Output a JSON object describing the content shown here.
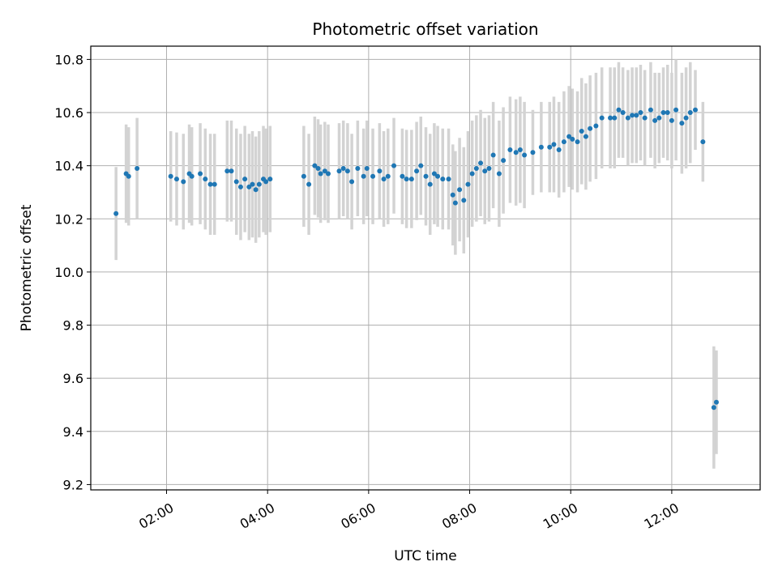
{
  "chart_data": {
    "type": "scatter",
    "title": "Photometric offset variation",
    "xlabel": "UTC time",
    "ylabel": "Photometric offset",
    "xlim": [
      "00:30",
      "13:45"
    ],
    "ylim": [
      9.18,
      10.85
    ],
    "grid": true,
    "x_ticks": [
      "02:00",
      "04:00",
      "06:00",
      "08:00",
      "10:00",
      "12:00"
    ],
    "y_ticks": [
      9.2,
      9.4,
      9.6,
      9.8,
      10.0,
      10.2,
      10.4,
      10.6,
      10.8
    ],
    "y_tick_labels": [
      "9.2",
      "9.4",
      "9.6",
      "9.8",
      "10.0",
      "10.2",
      "10.4",
      "10.6",
      "10.8"
    ],
    "colors": {
      "points": "#1f77b4",
      "error_bars": "#d3d3d3",
      "grid": "#b0b0b0"
    },
    "series": [
      {
        "x": [
          "01:00",
          "01:12",
          "01:15",
          "01:25",
          "02:05",
          "02:12",
          "02:20",
          "02:27",
          "02:30",
          "02:40",
          "02:46",
          "02:52",
          "02:57",
          "03:12",
          "03:17",
          "03:23",
          "03:28",
          "03:33",
          "03:38",
          "03:42",
          "03:46",
          "03:50",
          "03:55",
          "03:58",
          "04:03",
          "04:43",
          "04:49",
          "04:56",
          "05:00",
          "05:03",
          "05:08",
          "05:12",
          "05:25",
          "05:30",
          "05:35",
          "05:40",
          "05:47",
          "05:54",
          "05:58",
          "06:05",
          "06:13",
          "06:18",
          "06:23",
          "06:30",
          "06:40",
          "06:45",
          "06:51",
          "06:57",
          "07:02",
          "07:08",
          "07:13",
          "07:18",
          "07:22",
          "07:28",
          "07:35",
          "07:40",
          "07:43",
          "07:48",
          "07:53",
          "07:58",
          "08:03",
          "08:08",
          "08:13",
          "08:18",
          "08:23",
          "08:28",
          "08:35",
          "08:40",
          "08:48",
          "08:55",
          "09:00",
          "09:05",
          "09:15",
          "09:25",
          "09:35",
          "09:40",
          "09:46",
          "09:52",
          "09:58",
          "10:02",
          "10:08",
          "10:13",
          "10:18",
          "10:23",
          "10:30",
          "10:37",
          "10:47",
          "10:52",
          "10:57",
          "11:02",
          "11:08",
          "11:13",
          "11:18",
          "11:23",
          "11:28",
          "11:35",
          "11:40",
          "11:45",
          "11:50",
          "11:55",
          "12:00",
          "12:05",
          "12:12",
          "12:17",
          "12:22",
          "12:28",
          "12:37",
          "12:50",
          "12:53"
        ],
        "y": [
          10.22,
          10.37,
          10.36,
          10.39,
          10.36,
          10.35,
          10.34,
          10.37,
          10.36,
          10.37,
          10.35,
          10.33,
          10.33,
          10.38,
          10.38,
          10.34,
          10.32,
          10.35,
          10.32,
          10.33,
          10.31,
          10.33,
          10.35,
          10.34,
          10.35,
          10.36,
          10.33,
          10.4,
          10.39,
          10.37,
          10.38,
          10.37,
          10.38,
          10.39,
          10.38,
          10.34,
          10.39,
          10.36,
          10.39,
          10.36,
          10.38,
          10.35,
          10.36,
          10.4,
          10.36,
          10.35,
          10.35,
          10.38,
          10.4,
          10.36,
          10.33,
          10.37,
          10.36,
          10.35,
          10.35,
          10.29,
          10.26,
          10.31,
          10.27,
          10.33,
          10.37,
          10.39,
          10.41,
          10.38,
          10.39,
          10.44,
          10.37,
          10.42,
          10.46,
          10.45,
          10.46,
          10.44,
          10.45,
          10.47,
          10.47,
          10.48,
          10.46,
          10.49,
          10.51,
          10.5,
          10.49,
          10.53,
          10.51,
          10.54,
          10.55,
          10.58,
          10.58,
          10.58,
          10.61,
          10.6,
          10.58,
          10.59,
          10.59,
          10.6,
          10.58,
          10.61,
          10.57,
          10.58,
          10.6,
          10.6,
          10.57,
          10.61,
          10.56,
          10.58,
          10.6,
          10.61,
          10.49,
          9.49,
          9.51
        ],
        "err": [
          0.175,
          0.185,
          0.185,
          0.19,
          0.17,
          0.175,
          0.18,
          0.185,
          0.185,
          0.19,
          0.19,
          0.19,
          0.19,
          0.19,
          0.19,
          0.2,
          0.2,
          0.2,
          0.2,
          0.2,
          0.2,
          0.2,
          0.2,
          0.2,
          0.2,
          0.19,
          0.19,
          0.185,
          0.185,
          0.185,
          0.185,
          0.185,
          0.18,
          0.18,
          0.18,
          0.18,
          0.18,
          0.18,
          0.18,
          0.18,
          0.18,
          0.18,
          0.18,
          0.18,
          0.18,
          0.185,
          0.185,
          0.185,
          0.185,
          0.185,
          0.19,
          0.19,
          0.19,
          0.19,
          0.19,
          0.19,
          0.195,
          0.195,
          0.2,
          0.2,
          0.2,
          0.2,
          0.2,
          0.2,
          0.2,
          0.2,
          0.2,
          0.2,
          0.2,
          0.2,
          0.2,
          0.2,
          0.16,
          0.17,
          0.17,
          0.18,
          0.18,
          0.19,
          0.19,
          0.19,
          0.19,
          0.2,
          0.2,
          0.2,
          0.2,
          0.19,
          0.19,
          0.19,
          0.18,
          0.17,
          0.18,
          0.18,
          0.18,
          0.18,
          0.18,
          0.18,
          0.18,
          0.17,
          0.17,
          0.18,
          0.18,
          0.19,
          0.19,
          0.19,
          0.19,
          0.15,
          0.15,
          0.23,
          0.195
        ]
      }
    ]
  }
}
